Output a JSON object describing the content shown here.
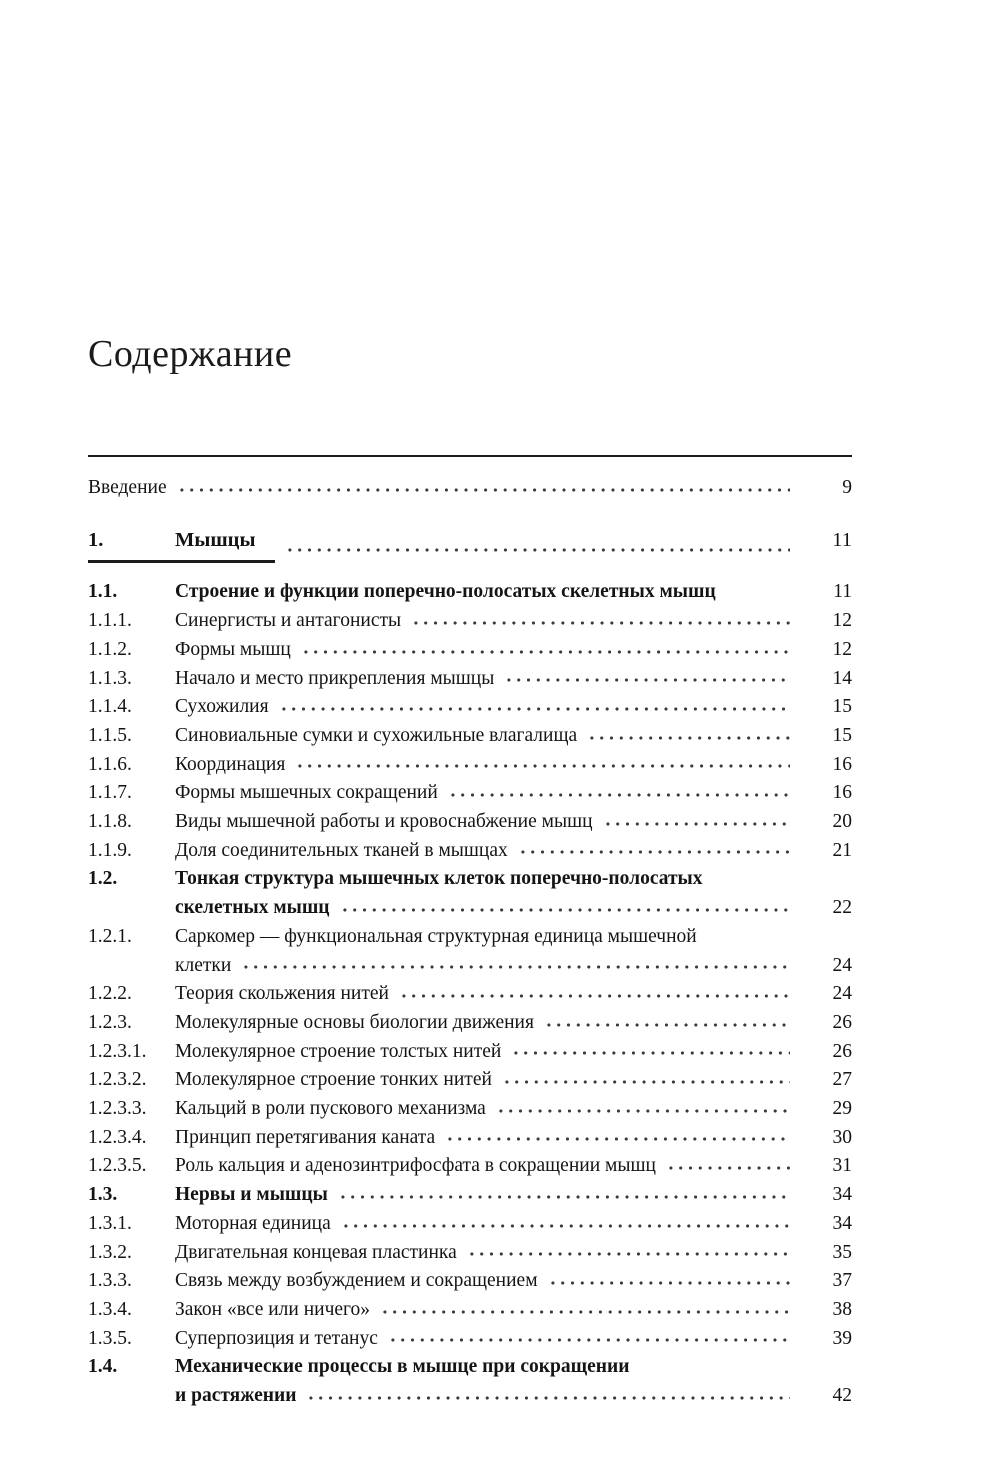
{
  "page": {
    "title": "Содержание"
  },
  "toc": {
    "intro": {
      "label": "Введение",
      "page": "9"
    },
    "entries": [
      {
        "num": "1.",
        "lines": [
          "Мышцы"
        ],
        "page": "11",
        "bold": true,
        "chapter": true
      },
      {
        "num": "1.1.",
        "lines": [
          "Строение и функции поперечно-полосатых скелетных мышц"
        ],
        "page": "11",
        "bold": true,
        "dots": false
      },
      {
        "num": "1.1.1.",
        "lines": [
          "Синергисты и антагонисты"
        ],
        "page": "12",
        "bold": false
      },
      {
        "num": "1.1.2.",
        "lines": [
          "Формы мышц"
        ],
        "page": "12",
        "bold": false
      },
      {
        "num": "1.1.3.",
        "lines": [
          "Начало и место прикрепления мышцы"
        ],
        "page": "14",
        "bold": false
      },
      {
        "num": "1.1.4.",
        "lines": [
          "Сухожилия"
        ],
        "page": "15",
        "bold": false
      },
      {
        "num": "1.1.5.",
        "lines": [
          "Синовиальные сумки и сухожильные влагалища"
        ],
        "page": "15",
        "bold": false
      },
      {
        "num": "1.1.6.",
        "lines": [
          "Координация"
        ],
        "page": "16",
        "bold": false
      },
      {
        "num": "1.1.7.",
        "lines": [
          "Формы мышечных сокращений"
        ],
        "page": "16",
        "bold": false
      },
      {
        "num": "1.1.8.",
        "lines": [
          "Виды мышечной работы и кровоснабжение мышц"
        ],
        "page": "20",
        "bold": false
      },
      {
        "num": "1.1.9.",
        "lines": [
          "Доля соединительных тканей в мышцах"
        ],
        "page": "21",
        "bold": false
      },
      {
        "num": "1.2.",
        "lines": [
          "Тонкая структура мышечных клеток поперечно-полосатых",
          "скелетных мышц"
        ],
        "page": "22",
        "bold": true
      },
      {
        "num": "1.2.1.",
        "lines": [
          "Саркомер — функциональная структурная единица мышечной",
          "клетки"
        ],
        "page": "24",
        "bold": false
      },
      {
        "num": "1.2.2.",
        "lines": [
          "Теория скольжения нитей"
        ],
        "page": "24",
        "bold": false
      },
      {
        "num": "1.2.3.",
        "lines": [
          "Молекулярные основы биологии движения"
        ],
        "page": "26",
        "bold": false
      },
      {
        "num": "1.2.3.1.",
        "lines": [
          "Молекулярное строение толстых нитей"
        ],
        "page": "26",
        "bold": false
      },
      {
        "num": "1.2.3.2.",
        "lines": [
          "Молекулярное строение тонких нитей"
        ],
        "page": "27",
        "bold": false
      },
      {
        "num": "1.2.3.3.",
        "lines": [
          "Кальций в роли пускового механизма"
        ],
        "page": "29",
        "bold": false
      },
      {
        "num": "1.2.3.4.",
        "lines": [
          "Принцип перетягивания каната"
        ],
        "page": "30",
        "bold": false
      },
      {
        "num": "1.2.3.5.",
        "lines": [
          "Роль кальция и аденозинтрифосфата в сокращении мышц"
        ],
        "page": "31",
        "bold": false
      },
      {
        "num": "1.3.",
        "lines": [
          "Нервы и мышцы"
        ],
        "page": "34",
        "bold": true
      },
      {
        "num": "1.3.1.",
        "lines": [
          "Моторная единица"
        ],
        "page": "34",
        "bold": false
      },
      {
        "num": "1.3.2.",
        "lines": [
          "Двигательная концевая пластинка"
        ],
        "page": "35",
        "bold": false
      },
      {
        "num": "1.3.3.",
        "lines": [
          "Связь между возбуждением и сокращением"
        ],
        "page": "37",
        "bold": false
      },
      {
        "num": "1.3.4.",
        "lines": [
          "Закон «все или ничего»"
        ],
        "page": "38",
        "bold": false
      },
      {
        "num": "1.3.5.",
        "lines": [
          "Суперпозиция и тетанус"
        ],
        "page": "39",
        "bold": false
      },
      {
        "num": "1.4.",
        "lines": [
          "Механические процессы в мышце при сокращении",
          "и растяжении"
        ],
        "page": "42",
        "bold": true
      }
    ]
  }
}
